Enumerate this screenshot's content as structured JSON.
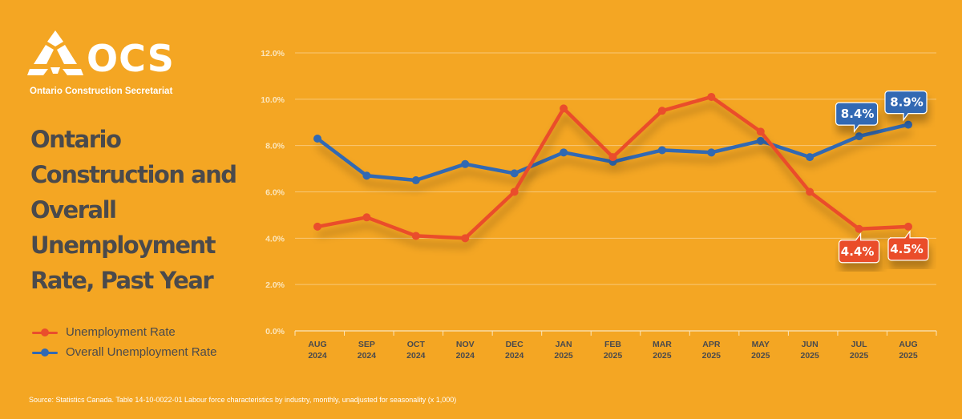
{
  "logo": {
    "name": "OCS",
    "subtitle": "Ontario Construction Secretariat"
  },
  "title": "Ontario Construction and Overall Unemployment Rate, Past Year",
  "source": "Source: Statistics Canada. Table 14-10-0022-01  Labour force characteristics by industry, monthly, unadjusted for seasonality (x 1,000)",
  "colors": {
    "background": "#f4a623",
    "construction": "#ea4d2c",
    "overall": "#3069b3",
    "title_text": "#4a4a4c"
  },
  "chart_data": {
    "type": "line",
    "categories": [
      [
        "AUG",
        "2024"
      ],
      [
        "SEP",
        "2024"
      ],
      [
        "OCT",
        "2024"
      ],
      [
        "NOV",
        "2024"
      ],
      [
        "DEC",
        "2024"
      ],
      [
        "JAN",
        "2025"
      ],
      [
        "FEB",
        "2025"
      ],
      [
        "MAR",
        "2025"
      ],
      [
        "APR",
        "2025"
      ],
      [
        "MAY",
        "2025"
      ],
      [
        "JUN",
        "2025"
      ],
      [
        "JUL",
        "2025"
      ],
      [
        "AUG",
        "2025"
      ]
    ],
    "series": [
      {
        "name": "Unemployment Rate",
        "color": "#ea4d2c",
        "values": [
          4.5,
          4.9,
          4.1,
          4.0,
          6.0,
          9.6,
          7.5,
          9.5,
          10.1,
          8.6,
          6.0,
          4.4,
          4.5
        ]
      },
      {
        "name": "Overall Unemployment Rate",
        "color": "#3069b3",
        "values": [
          8.3,
          6.7,
          6.5,
          7.2,
          6.8,
          7.7,
          7.3,
          7.8,
          7.7,
          8.2,
          7.5,
          8.4,
          8.9
        ]
      }
    ],
    "y_ticks": [
      "0.0%",
      "2.0%",
      "4.0%",
      "6.0%",
      "8.0%",
      "10.0%",
      "12.0%"
    ],
    "ylim": [
      0,
      12
    ],
    "grid": true,
    "legend_position": "bottom-left",
    "annotations": [
      {
        "series": 1,
        "index": 11,
        "text": "8.4%",
        "placement": "above"
      },
      {
        "series": 1,
        "index": 12,
        "text": "8.9%",
        "placement": "above"
      },
      {
        "series": 0,
        "index": 11,
        "text": "4.4%",
        "placement": "below"
      },
      {
        "series": 0,
        "index": 12,
        "text": "4.5%",
        "placement": "below"
      }
    ]
  }
}
